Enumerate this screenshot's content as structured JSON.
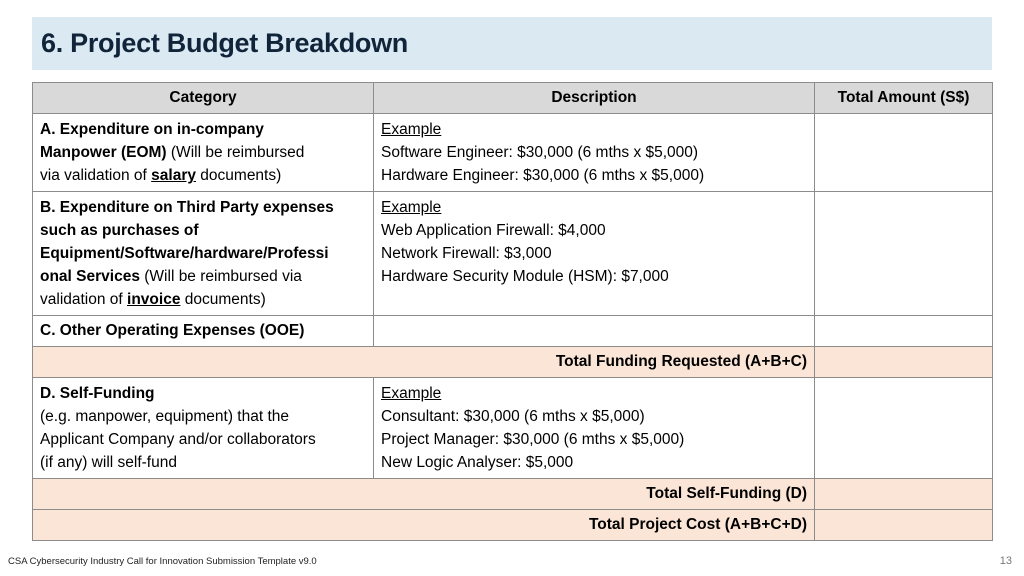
{
  "title": "6. Project Budget Breakdown",
  "table": {
    "headers": [
      "Category",
      "Description",
      "Total Amount (S$)"
    ],
    "rows": {
      "a": {
        "cat_bold": "A. Expenditure on in-company Manpower (EOM)",
        "cat_l1": "A. Expenditure on in-company",
        "cat_l2_bold": "Manpower (EOM)",
        "cat_l2_rest": " (Will be reimbursed",
        "cat_l3_pre": "via validation of ",
        "cat_l3_key": "salary",
        "cat_l3_post": " documents)",
        "desc": [
          "Example",
          "Software Engineer: $30,000 (6 mths x $5,000)",
          "Hardware Engineer: $30,000 (6 mths x $5,000)"
        ],
        "amount": ""
      },
      "b": {
        "cat_l1": "B. Expenditure on Third Party expenses",
        "cat_l2": "such as purchases of",
        "cat_l3": "Equipment/Software/hardware/Professi",
        "cat_l4_bold": "onal Services",
        "cat_l4_rest": " (Will be reimbursed via",
        "cat_l5_pre": "validation of ",
        "cat_l5_key": "invoice",
        "cat_l5_post": " documents)",
        "desc": [
          "Example",
          "Web Application Firewall: $4,000",
          "Network Firewall: $3,000",
          "Hardware Security Module (HSM): $7,000"
        ],
        "amount": ""
      },
      "c": {
        "cat": "C. Other Operating Expenses (OOE)",
        "desc": "",
        "amount": ""
      },
      "total_abc": {
        "label": "Total Funding Requested (A+B+C)",
        "amount": ""
      },
      "d": {
        "cat_l1": "D. Self-Funding",
        "cat_l2": "(e.g. manpower, equipment) that the",
        "cat_l3": "Applicant Company and/or collaborators",
        "cat_l4": "(if any) will self-fund",
        "desc": [
          "Example",
          "Consultant: $30,000 (6 mths x $5,000)",
          "Project Manager: $30,000 (6 mths x $5,000)",
          "New Logic Analyser: $5,000"
        ],
        "amount": ""
      },
      "total_d": {
        "label": "Total Self-Funding (D)",
        "amount": ""
      },
      "total_all": {
        "label": "Total Project Cost (A+B+C+D)",
        "amount": ""
      }
    }
  },
  "footer": {
    "left": "CSA Cybersecurity Industry Call for Innovation Submission Template v9.0",
    "page": "13"
  }
}
